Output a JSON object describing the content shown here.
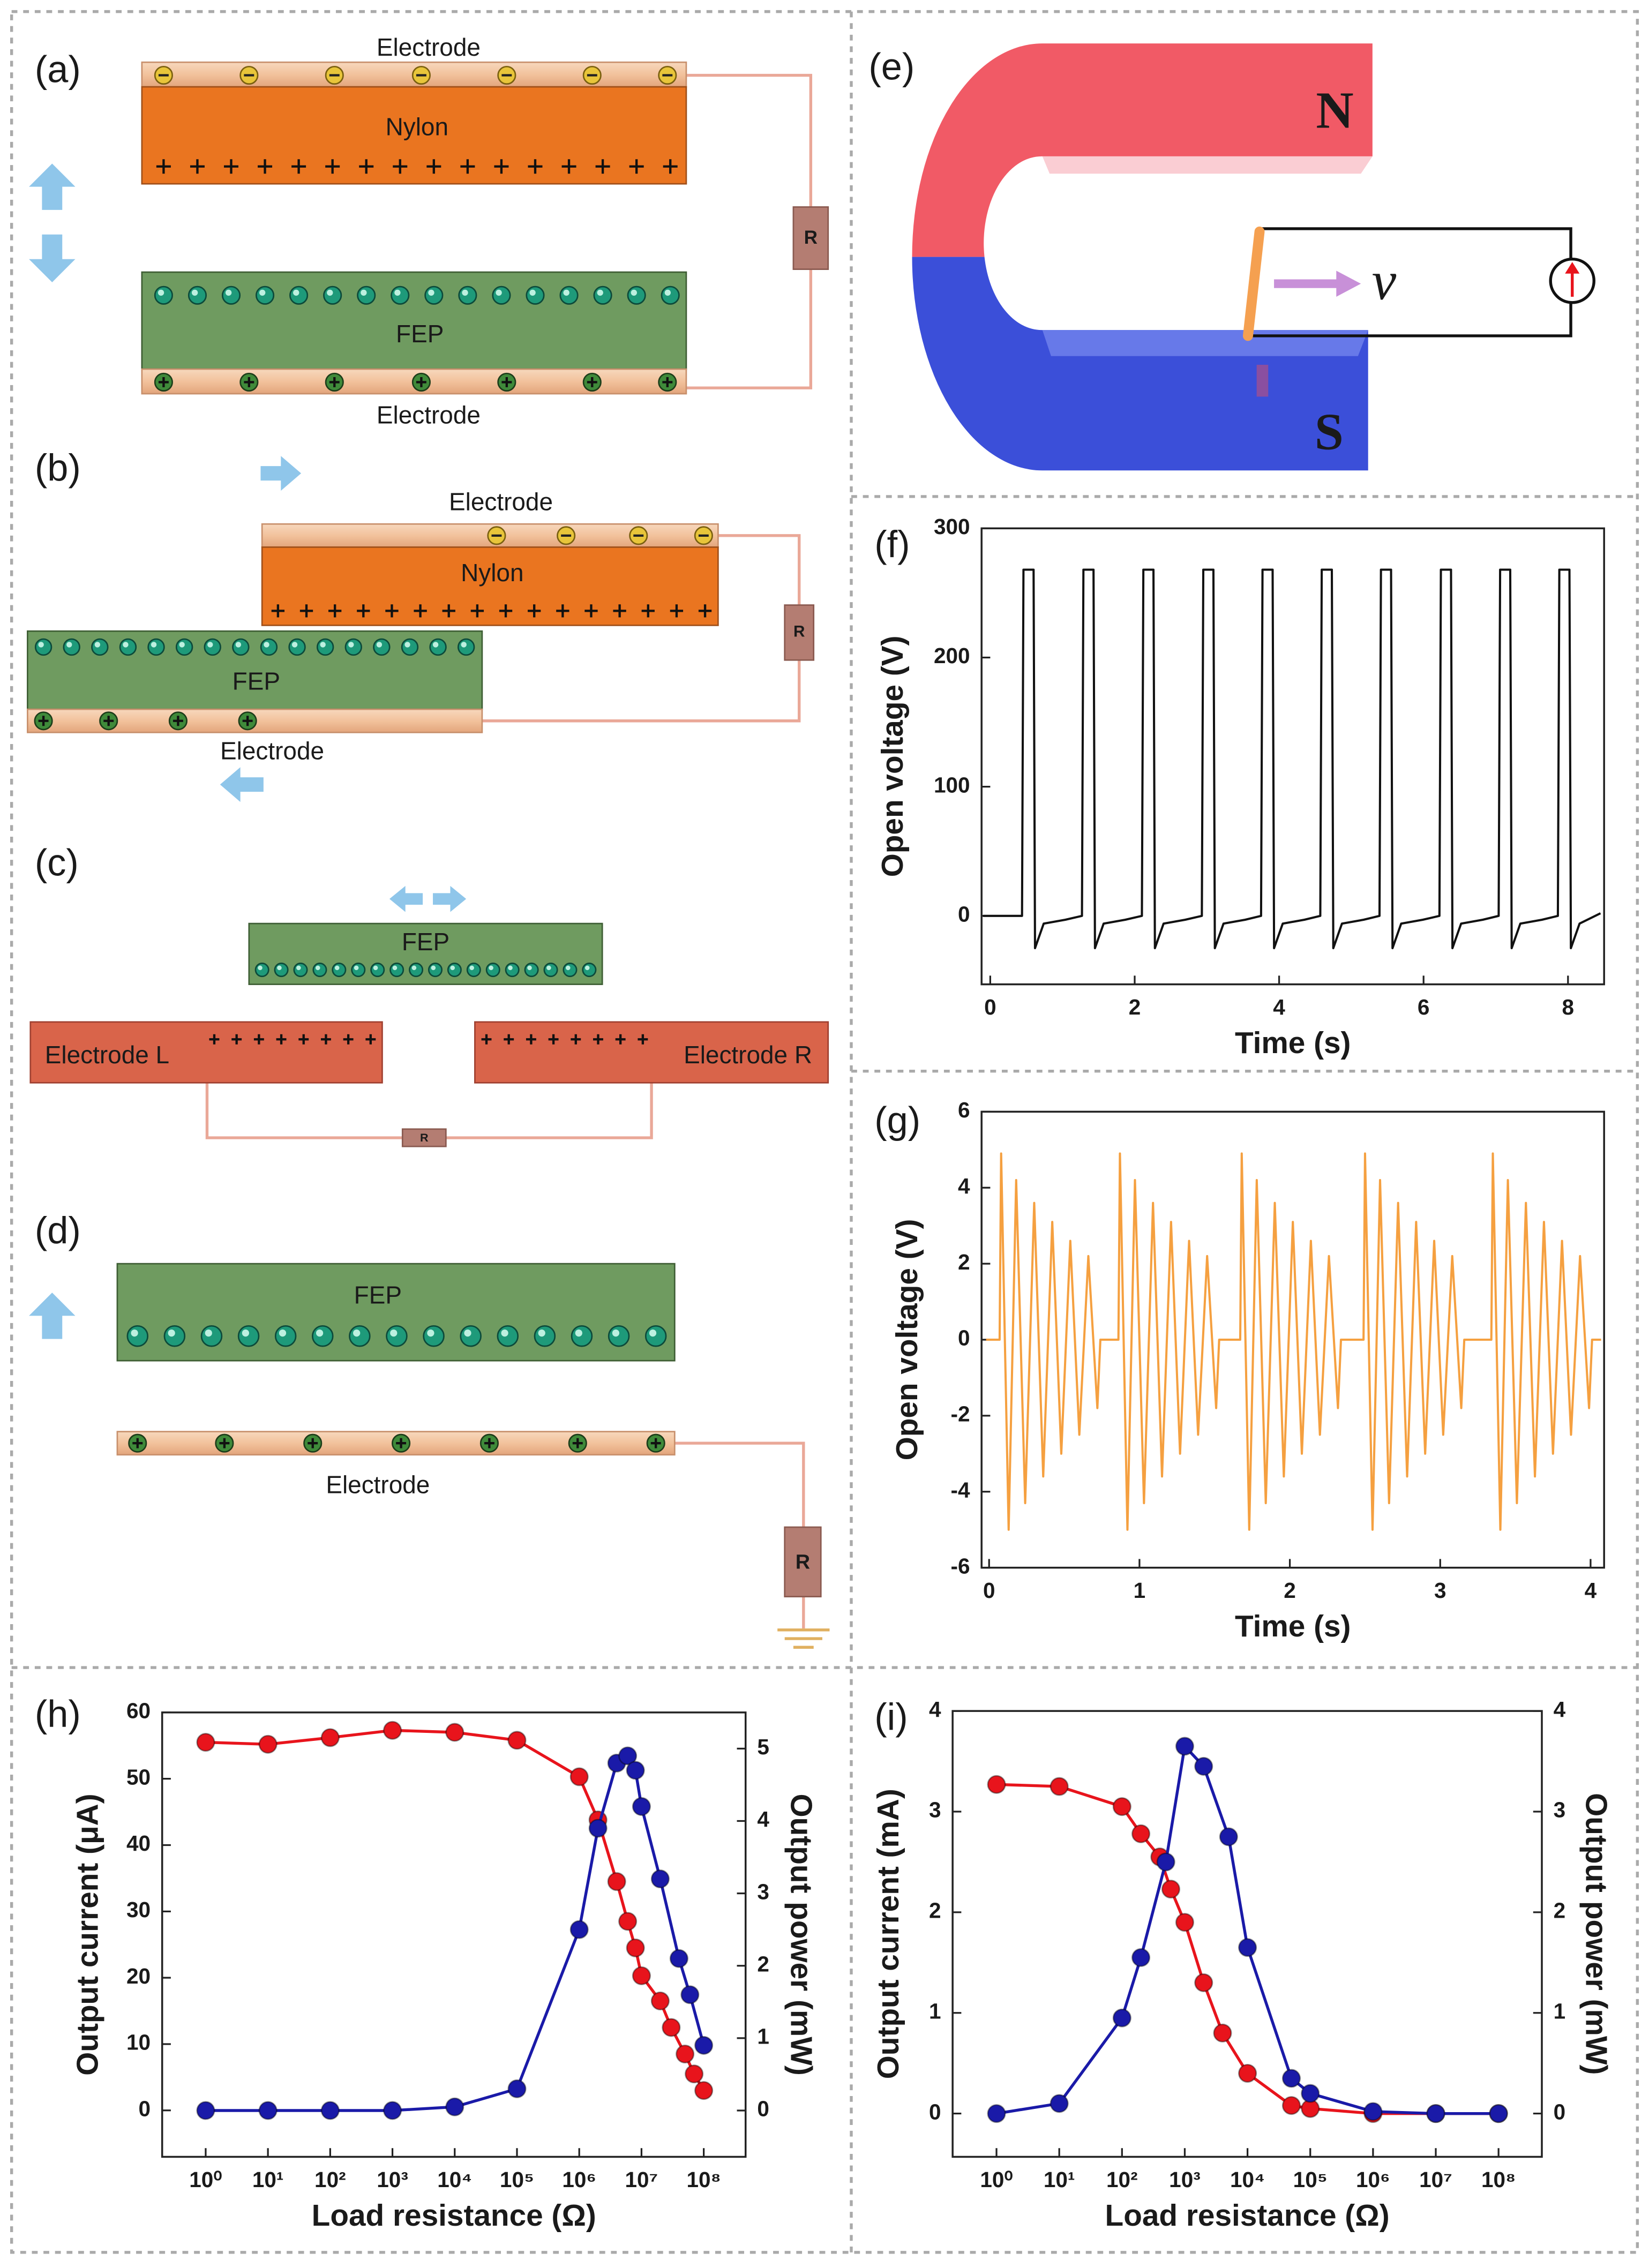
{
  "panel_labels": [
    "(a)",
    "(b)",
    "(c)",
    "(d)",
    "(e)",
    "(f)",
    "(g)",
    "(h)",
    "(i)"
  ],
  "diagrams": {
    "a": {
      "top_electrode": "Electrode",
      "nylon": "Nylon",
      "fep": "FEP",
      "bottom_electrode": "Electrode",
      "resistor": "R"
    },
    "b": {
      "top_electrode": "Electrode",
      "nylon": "Nylon",
      "fep": "FEP",
      "bottom_electrode": "Electrode",
      "resistor": "R"
    },
    "c": {
      "fep": "FEP",
      "electrode_left": "Electrode L",
      "electrode_right": "Electrode R",
      "resistor": "R"
    },
    "d": {
      "fep": "FEP",
      "electrode": "Electrode",
      "resistor": "R"
    },
    "e": {
      "north": "N",
      "south": "S",
      "velocity": "v"
    }
  },
  "chart_data": [
    {
      "type": "line",
      "xlabel": "Time (s)",
      "ylabel": "Open voltage (V)",
      "xlim": [
        -0.12,
        8.5
      ],
      "ylim": [
        -53,
        300
      ],
      "xticks": [
        0,
        2,
        4,
        6,
        8
      ],
      "yticks": [
        0,
        100,
        200,
        300
      ],
      "x": [
        -0.1,
        0.44,
        0.46,
        0.6,
        0.62,
        0.74,
        1.04,
        1.27,
        1.29,
        1.43,
        1.45,
        1.57,
        1.87,
        2.1,
        2.12,
        2.26,
        2.28,
        2.4,
        2.7,
        2.93,
        2.95,
        3.09,
        3.11,
        3.23,
        3.53,
        3.75,
        3.77,
        3.91,
        3.93,
        4.05,
        4.35,
        4.57,
        4.59,
        4.73,
        4.75,
        4.87,
        5.17,
        5.39,
        5.41,
        5.55,
        5.57,
        5.69,
        5.99,
        6.22,
        6.24,
        6.38,
        6.4,
        6.52,
        6.82,
        7.04,
        7.06,
        7.2,
        7.22,
        7.34,
        7.64,
        7.86,
        7.88,
        8.02,
        8.04,
        8.16,
        8.45
      ],
      "series": [
        {
          "color": "#111111",
          "values": [
            0,
            0,
            268,
            268,
            -25,
            -6,
            -3,
            0,
            268,
            268,
            -25,
            -6,
            -3,
            0,
            268,
            268,
            -25,
            -6,
            -3,
            0,
            268,
            268,
            -25,
            -6,
            -3,
            0,
            268,
            268,
            -25,
            -6,
            -3,
            0,
            268,
            268,
            -25,
            -6,
            -3,
            0,
            268,
            268,
            -25,
            -6,
            -3,
            0,
            268,
            268,
            -25,
            -6,
            -3,
            0,
            268,
            268,
            -25,
            -6,
            -3,
            0,
            268,
            268,
            -25,
            -6,
            2
          ]
        }
      ]
    },
    {
      "type": "line",
      "xlabel": "Time (s)",
      "ylabel": "Open voltage (V)",
      "xlim": [
        -0.05,
        4.09
      ],
      "ylim": [
        -6,
        6
      ],
      "xticks": [
        0,
        1,
        2,
        3,
        4
      ],
      "yticks": [
        -6,
        -4,
        -2,
        0,
        2,
        4,
        6
      ],
      "x": [
        -0.02,
        0.07,
        0.08,
        0.13,
        0.18,
        0.24,
        0.3,
        0.36,
        0.42,
        0.48,
        0.54,
        0.6,
        0.66,
        0.72,
        0.74,
        0.86,
        0.87,
        0.92,
        0.97,
        1.03,
        1.09,
        1.15,
        1.21,
        1.27,
        1.33,
        1.39,
        1.45,
        1.51,
        1.53,
        1.67,
        1.68,
        1.73,
        1.78,
        1.84,
        1.9,
        1.96,
        2.02,
        2.08,
        2.14,
        2.2,
        2.26,
        2.32,
        2.34,
        2.49,
        2.5,
        2.55,
        2.6,
        2.66,
        2.72,
        2.78,
        2.84,
        2.9,
        2.96,
        3.02,
        3.08,
        3.14,
        3.16,
        3.34,
        3.35,
        3.4,
        3.45,
        3.51,
        3.57,
        3.63,
        3.69,
        3.75,
        3.81,
        3.87,
        3.93,
        3.99,
        4.01,
        4.07
      ],
      "series": [
        {
          "color": "#f5a040",
          "values": [
            0,
            0,
            4.9,
            -5,
            4.2,
            -4.3,
            3.6,
            -3.6,
            3.1,
            -3,
            2.6,
            -2.5,
            2.2,
            -1.8,
            0,
            0,
            4.9,
            -5,
            4.2,
            -4.3,
            3.6,
            -3.6,
            3.1,
            -3,
            2.6,
            -2.5,
            2.2,
            -1.8,
            0,
            0,
            4.9,
            -5,
            4.2,
            -4.3,
            3.6,
            -3.6,
            3.1,
            -3,
            2.6,
            -2.5,
            2.2,
            -1.8,
            0,
            0,
            4.9,
            -5,
            4.2,
            -4.3,
            3.6,
            -3.6,
            3.1,
            -3,
            2.6,
            -2.5,
            2.2,
            -1.8,
            0,
            0,
            4.9,
            -5,
            4.2,
            -4.3,
            3.6,
            -3.6,
            3.1,
            -3,
            2.6,
            -2.5,
            2.2,
            -1.8,
            0,
            0
          ]
        }
      ]
    },
    {
      "type": "line",
      "xlabel": "Load resistance (Ω)",
      "ylabel": "Output current (μA)",
      "y2label": "Output power (mW)",
      "ylabel_color": "#e8141c",
      "y2label_color": "#1a1aa8",
      "xscale": "log",
      "xlim": [
        0.2,
        470000000
      ],
      "ylim": [
        -7,
        60
      ],
      "y2lim": [
        -0.64,
        5.5
      ],
      "xticks": [
        {
          "value": 1,
          "label": "10⁰"
        },
        {
          "value": 10,
          "label": "10¹"
        },
        {
          "value": 100,
          "label": "10²"
        },
        {
          "value": 1000,
          "label": "10³"
        },
        {
          "value": 10000,
          "label": "10⁴"
        },
        {
          "value": 100000,
          "label": "10⁵"
        },
        {
          "value": 1000000,
          "label": "10⁶"
        },
        {
          "value": 10000000,
          "label": "10⁷"
        },
        {
          "value": 100000000,
          "label": "10⁸"
        }
      ],
      "yticks": [
        0,
        10,
        20,
        30,
        40,
        50,
        60
      ],
      "y2ticks": [
        0,
        1,
        2,
        3,
        4,
        5
      ],
      "series": [
        {
          "color": "#e8141c",
          "markers": true,
          "x": [
            1,
            10,
            100,
            1000,
            10000,
            100000,
            1000000,
            2000000,
            4000000,
            6000000,
            8000000,
            10000000,
            20000000,
            30000000,
            50000000,
            70000000,
            100000000
          ],
          "values": [
            55.5,
            55.2,
            56.2,
            57.3,
            57,
            55.8,
            50.3,
            43.8,
            34.5,
            28.5,
            24.5,
            20.3,
            16.5,
            12.5,
            8.5,
            5.5,
            3
          ]
        },
        {
          "color": "#1a1aa8",
          "markers": true,
          "axis": "y2",
          "x": [
            1,
            10,
            100,
            1000,
            10000,
            100000,
            1000000,
            2000000,
            4000000,
            6000000,
            8000000,
            10000000,
            20000000,
            40000000,
            60000000,
            100000000
          ],
          "values": [
            0,
            0,
            0,
            0,
            0.05,
            0.3,
            2.5,
            3.9,
            4.8,
            4.9,
            4.7,
            4.2,
            3.2,
            2.1,
            1.6,
            0.9
          ]
        }
      ]
    },
    {
      "type": "line",
      "xlabel": "Load resistance (Ω)",
      "ylabel": "Output current (mA)",
      "y2label": "Output power (mW)",
      "ylabel_color": "#e8141c",
      "y2label_color": "#1a1aa8",
      "xscale": "log",
      "xlim": [
        0.2,
        490000000
      ],
      "ylim": [
        -0.43,
        4
      ],
      "y2lim": [
        -0.43,
        4
      ],
      "xticks": [
        {
          "value": 1,
          "label": "10⁰"
        },
        {
          "value": 10,
          "label": "10¹"
        },
        {
          "value": 100,
          "label": "10²"
        },
        {
          "value": 1000,
          "label": "10³"
        },
        {
          "value": 10000,
          "label": "10⁴"
        },
        {
          "value": 100000,
          "label": "10⁵"
        },
        {
          "value": 1000000,
          "label": "10⁶"
        },
        {
          "value": 10000000,
          "label": "10⁷"
        },
        {
          "value": 100000000,
          "label": "10⁸"
        }
      ],
      "yticks": [
        0,
        1,
        2,
        3,
        4
      ],
      "y2ticks": [
        0,
        1,
        2,
        3,
        4
      ],
      "series": [
        {
          "color": "#e8141c",
          "markers": true,
          "x": [
            1,
            10,
            100,
            200,
            400,
            600,
            1000,
            2000,
            4000,
            10000,
            50000,
            100000,
            1000000,
            10000000,
            100000000
          ],
          "values": [
            3.27,
            3.25,
            3.05,
            2.78,
            2.55,
            2.23,
            1.9,
            1.3,
            0.8,
            0.4,
            0.08,
            0.05,
            0,
            0,
            0
          ]
        },
        {
          "color": "#1a1aa8",
          "markers": true,
          "axis": "y2",
          "x": [
            1,
            10,
            100,
            200,
            500,
            1000,
            2000,
            5000,
            10000,
            50000,
            100000,
            1000000,
            10000000,
            100000000
          ],
          "values": [
            0,
            0.1,
            0.95,
            1.55,
            2.5,
            3.65,
            3.45,
            2.75,
            1.65,
            0.35,
            0.2,
            0.02,
            0,
            0
          ]
        }
      ]
    }
  ]
}
